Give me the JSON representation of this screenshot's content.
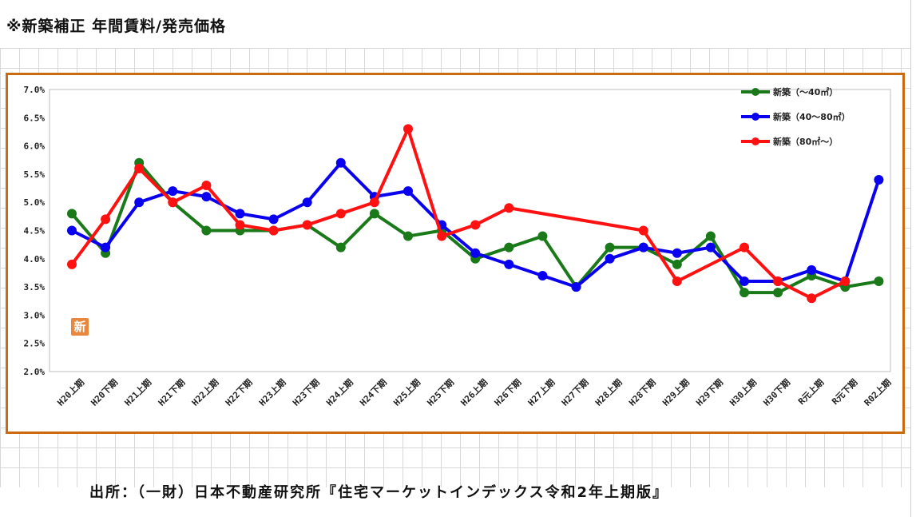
{
  "title": "※新築補正 年間賃料/発売価格",
  "source": "出所：（一財）日本不動産研究所『住宅マーケットインデックス令和2年上期版』",
  "badge": "新",
  "chart_data": {
    "type": "line",
    "categories": [
      "H20上期",
      "H20下期",
      "H21上期",
      "H21下期",
      "H22上期",
      "H22下期",
      "H23上期",
      "H23下期",
      "H24上期",
      "H24下期",
      "H25上期",
      "H25下期",
      "H26上期",
      "H26下期",
      "H27上期",
      "H27下期",
      "H28上期",
      "H28下期",
      "H29上期",
      "H29下期",
      "H30上期",
      "H30下期",
      "R元上期",
      "R元下期",
      "R02上期"
    ],
    "yticks": [
      "7.0%",
      "6.5%",
      "6.0%",
      "5.5%",
      "5.0%",
      "4.5%",
      "4.0%",
      "3.5%",
      "3.0%",
      "2.5%",
      "2.0%"
    ],
    "ylim": [
      2.0,
      7.0
    ],
    "grid": false,
    "legend_position": "top-right",
    "series": [
      {
        "name": "新築（～40㎡）",
        "color": "#1a7a1a",
        "values": [
          4.8,
          4.1,
          5.7,
          5.0,
          4.5,
          4.5,
          4.5,
          4.6,
          4.2,
          4.8,
          4.4,
          4.5,
          4.0,
          4.2,
          4.4,
          3.5,
          4.2,
          4.2,
          3.9,
          4.4,
          3.4,
          3.4,
          3.7,
          3.5,
          3.6
        ]
      },
      {
        "name": "新築（40～80㎡）",
        "color": "#0a00f0",
        "values": [
          4.5,
          4.2,
          5.0,
          5.2,
          5.1,
          4.8,
          4.7,
          5.0,
          5.7,
          5.1,
          5.2,
          4.6,
          4.1,
          3.9,
          3.7,
          3.5,
          4.0,
          4.2,
          4.1,
          4.2,
          3.6,
          3.6,
          3.8,
          3.6,
          5.4
        ]
      },
      {
        "name": "新築（80㎡～）",
        "color": "#ff1111",
        "values": [
          3.9,
          4.7,
          5.6,
          5.0,
          5.3,
          4.6,
          4.5,
          4.6,
          4.8,
          5.0,
          6.3,
          4.4,
          4.6,
          4.9,
          null,
          null,
          null,
          4.5,
          3.6,
          null,
          4.2,
          3.6,
          3.3,
          3.6,
          null
        ]
      }
    ]
  }
}
